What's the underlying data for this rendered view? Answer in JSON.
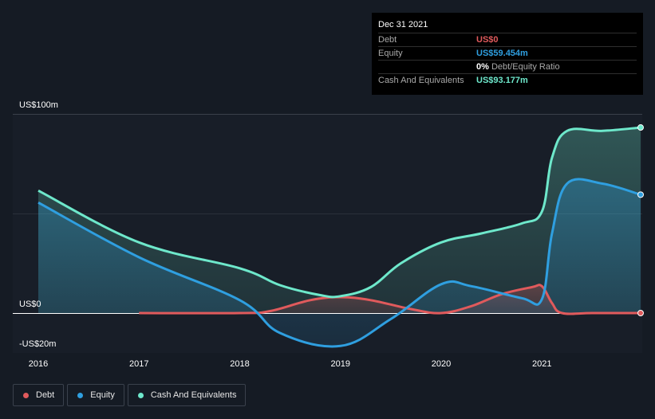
{
  "chart_data": {
    "type": "area",
    "title": "",
    "xlabel": "",
    "ylabel": "",
    "ylim": [
      -20,
      100
    ],
    "ytick_labels": [
      "US$100m",
      "US$0",
      "-US$20m"
    ],
    "xtick_labels": [
      "2016",
      "2017",
      "2018",
      "2019",
      "2020",
      "2021"
    ],
    "xlim": [
      2016,
      2021.98
    ],
    "grid": true,
    "series": [
      {
        "name": "Debt",
        "color": "#e05a5c",
        "x": [
          2017.0,
          2018.0,
          2018.3,
          2018.7,
          2019.0,
          2019.3,
          2019.7,
          2020.0,
          2020.3,
          2020.6,
          2020.9,
          2021.0,
          2021.1,
          2021.2,
          2021.5,
          2021.98
        ],
        "values": [
          0,
          0,
          1.0,
          6.5,
          8.0,
          6.5,
          2.0,
          0,
          3.5,
          9.5,
          13.0,
          13.5,
          5.0,
          0,
          0,
          0
        ]
      },
      {
        "name": "Equity",
        "color": "#2f9fe0",
        "x": [
          2016.0,
          2017.0,
          2018.0,
          2018.4,
          2019.0,
          2019.5,
          2020.0,
          2020.3,
          2020.8,
          2021.0,
          2021.1,
          2021.25,
          2021.6,
          2021.98
        ],
        "values": [
          55.5,
          28.0,
          6.5,
          -10.0,
          -16.5,
          -3.0,
          14.5,
          13.5,
          7.5,
          7.0,
          40.0,
          65.0,
          65.0,
          59.454
        ]
      },
      {
        "name": "Cash And Equivalents",
        "color": "#6ee8cb",
        "x": [
          2016.0,
          2017.0,
          2018.0,
          2018.4,
          2018.8,
          2019.0,
          2019.3,
          2019.6,
          2020.0,
          2020.4,
          2020.8,
          2021.0,
          2021.1,
          2021.25,
          2021.6,
          2021.98
        ],
        "values": [
          61.5,
          35.5,
          22.5,
          14.0,
          9.0,
          8.5,
          13.0,
          25.0,
          35.5,
          40.0,
          45.0,
          51.0,
          78.0,
          91.5,
          91.5,
          93.177
        ]
      }
    ]
  },
  "tooltip": {
    "date": "Dec 31 2021",
    "debt_label": "Debt",
    "debt_value": "US$0",
    "equity_label": "Equity",
    "equity_value": "US$59.454m",
    "ratio_value": "0%",
    "ratio_label": "Debt/Equity Ratio",
    "cash_label": "Cash And Equivalents",
    "cash_value": "US$93.177m"
  },
  "legend": {
    "debt": "Debt",
    "equity": "Equity",
    "cash": "Cash And Equivalents"
  },
  "colors": {
    "background": "#151b24",
    "debt": "#e05a5c",
    "equity": "#2f9fe0",
    "cash": "#6ee8cb"
  }
}
